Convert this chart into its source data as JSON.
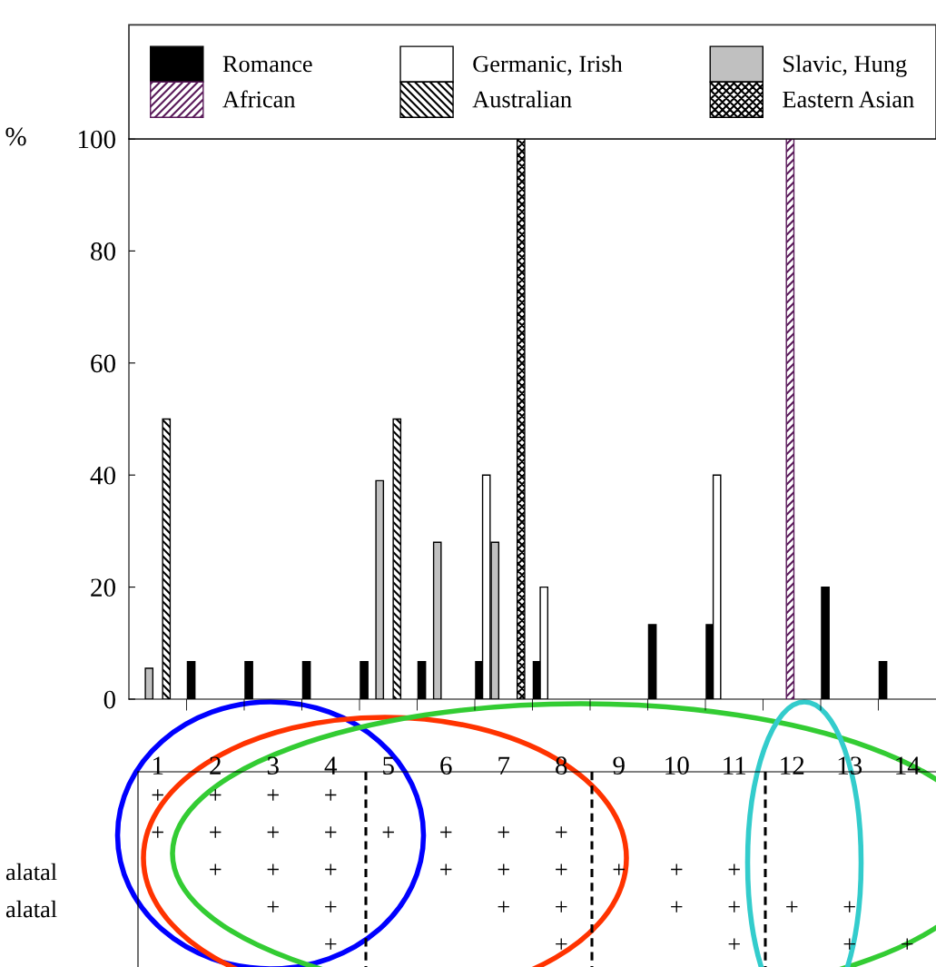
{
  "chart_data": [
    {
      "type": "bar",
      "ylabel": "%",
      "categories": [
        "1",
        "2",
        "3",
        "4",
        "5",
        "6",
        "7",
        "8",
        "9",
        "10",
        "11",
        "12",
        "13",
        "14"
      ],
      "series": [
        {
          "name": "Romance",
          "color": "#000000",
          "values": [
            null,
            6.7,
            6.7,
            6.7,
            6.7,
            6.7,
            6.7,
            6.7,
            null,
            13.3,
            13.3,
            null,
            20,
            6.7
          ]
        },
        {
          "name": "African",
          "color": "#5a1a5a",
          "values": [
            null,
            null,
            null,
            null,
            null,
            null,
            null,
            null,
            null,
            null,
            null,
            100,
            null,
            null
          ]
        },
        {
          "name": "Germanic, Irish",
          "color": "#ffffff",
          "values": [
            null,
            null,
            null,
            null,
            null,
            null,
            40,
            20,
            null,
            null,
            40,
            null,
            null,
            null
          ]
        },
        {
          "name": "Australian",
          "color": "#000000",
          "values": [
            50,
            null,
            null,
            null,
            50,
            null,
            null,
            null,
            null,
            null,
            null,
            null,
            null,
            null
          ]
        },
        {
          "name": "Slavic, Hung",
          "color": "#c0c0c0",
          "values": [
            5.5,
            null,
            null,
            null,
            39,
            28,
            28,
            null,
            null,
            null,
            null,
            null,
            null,
            null
          ]
        },
        {
          "name": "Eastern Asian",
          "color": "#000000",
          "values": [
            null,
            null,
            null,
            null,
            null,
            null,
            100,
            null,
            null,
            null,
            null,
            null,
            null,
            null
          ]
        }
      ],
      "ylim": [
        0,
        100
      ],
      "yticks": [
        0,
        20,
        40,
        60,
        80,
        100
      ],
      "grid": false,
      "legend": "top"
    },
    {
      "type": "heatmap",
      "categories": [
        null,
        null,
        null,
        null,
        null,
        null,
        null,
        null,
        null,
        null,
        null,
        null,
        null,
        null
      ],
      "y_categories": [
        null,
        null,
        "alatal",
        "alatal",
        null
      ],
      "cells": [
        [
          "+",
          "+",
          "+",
          "+",
          null,
          null,
          null,
          null,
          null,
          null,
          null,
          null,
          null,
          null
        ],
        [
          "+",
          "+",
          "+",
          "+",
          "+",
          "+",
          "+",
          "+",
          null,
          null,
          null,
          null,
          null,
          null
        ],
        [
          null,
          "+",
          "+",
          "+",
          null,
          "+",
          "+",
          "+",
          "+",
          "+",
          "+",
          null,
          null,
          null
        ],
        [
          null,
          null,
          "+",
          "+",
          null,
          null,
          "+",
          "+",
          null,
          "+",
          "+",
          "+",
          "+",
          null
        ],
        [
          null,
          null,
          null,
          "+",
          null,
          null,
          null,
          "+",
          null,
          null,
          "+",
          null,
          "+",
          "+"
        ]
      ]
    }
  ]
}
